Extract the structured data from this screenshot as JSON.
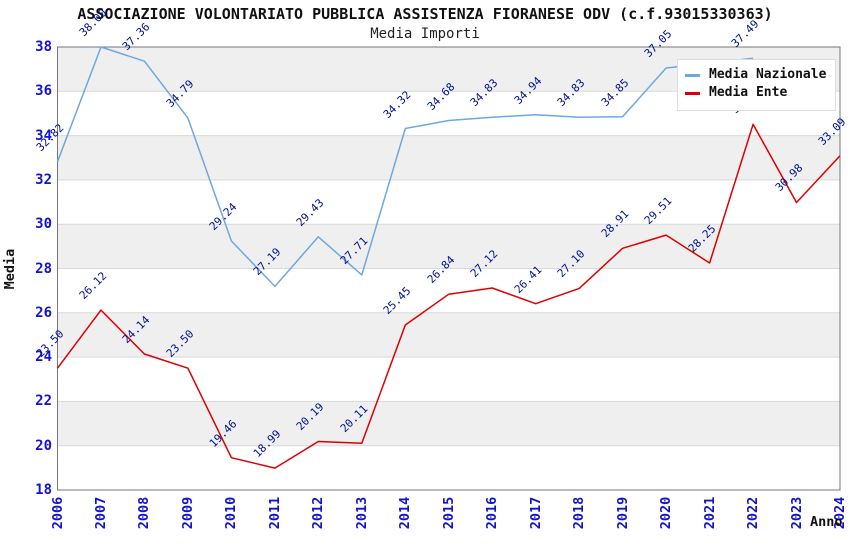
{
  "header": {
    "title": "ASSOCIAZIONE VOLONTARIATO PUBBLICA ASSISTENZA FIORANESE ODV (c.f.93015330363)",
    "subtitle": "Media Importi"
  },
  "chart_data": {
    "type": "line",
    "x": [
      2006,
      2007,
      2008,
      2009,
      2010,
      2011,
      2012,
      2013,
      2014,
      2015,
      2016,
      2017,
      2018,
      2019,
      2020,
      2021,
      2022,
      2023,
      2024
    ],
    "series": [
      {
        "name": "Media Nazionale",
        "color": "#6fa8dc",
        "values": [
          32.82,
          38.0,
          37.36,
          34.79,
          29.24,
          27.19,
          29.43,
          27.71,
          34.32,
          34.68,
          34.83,
          34.94,
          34.83,
          34.85,
          37.05,
          null,
          37.49,
          null,
          null
        ]
      },
      {
        "name": "Media Ente",
        "color": "#dd0000",
        "values": [
          23.5,
          26.12,
          24.14,
          23.5,
          19.46,
          18.99,
          20.19,
          20.11,
          25.45,
          26.84,
          27.12,
          26.41,
          27.1,
          28.91,
          29.51,
          28.25,
          34.51,
          30.98,
          33.09
        ]
      }
    ],
    "ylabel": "Media",
    "xlabel": "Anno",
    "ylim": [
      18,
      38
    ],
    "ytick_step": 2,
    "grid": "horizontal",
    "legend_position": "top-right",
    "colors": {
      "axis_tick_labels": "#1313cf",
      "value_labels": "#001090",
      "band_fill": "#efefef",
      "gridline": "#d9d9d9",
      "plot_border": "#777777"
    }
  }
}
